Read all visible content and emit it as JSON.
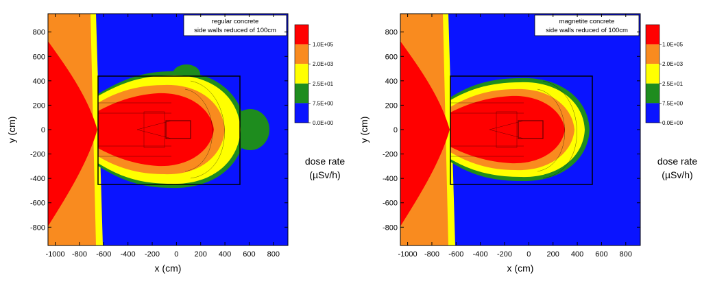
{
  "chart_data": [
    {
      "type": "heatmap",
      "annotation_lines": [
        "regular concrete",
        "side walls reduced of 100cm"
      ],
      "xlabel": "x (cm)",
      "ylabel": "y (cm)",
      "xlim": [
        -1060,
        920
      ],
      "ylim": [
        -950,
        950
      ],
      "xticks": [
        -1000,
        -800,
        -600,
        -400,
        -200,
        0,
        200,
        400,
        600,
        800
      ],
      "yticks": [
        -800,
        -600,
        -400,
        -200,
        0,
        200,
        400,
        600,
        800
      ],
      "colorbar_title": [
        "dose rate",
        "(µSv/h)"
      ],
      "colorbar_levels": [
        "1.0E+05",
        "2.0E+03",
        "2.5E+01",
        "7.5E+00",
        "0.0E+00"
      ],
      "colorbar_colors": [
        "#ff0000",
        "#f98b1f",
        "#ffff00",
        "#1e8c1e",
        "#0a14ff"
      ],
      "shielding_outline_cm": {
        "x": [
          -630,
          520
        ],
        "y": [
          -440,
          440
        ]
      },
      "dose_zones_cm": {
        "outer_yellow": {
          "x": [
            -640,
            560
          ],
          "y": [
            -440,
            440
          ]
        },
        "orange_core": {
          "x": [
            -640,
            420
          ],
          "y": [
            -360,
            370
          ]
        },
        "left_high_dose_x_cm": -640,
        "green_lobe_right_center": [
          580,
          0
        ]
      }
    },
    {
      "type": "heatmap",
      "annotation_lines": [
        "magnetite concrete",
        "side walls reduced of 100cm"
      ],
      "xlabel": "x (cm)",
      "ylabel": "y (cm)",
      "xlim": [
        -1060,
        920
      ],
      "ylim": [
        -950,
        950
      ],
      "xticks": [
        -1000,
        -800,
        -600,
        -400,
        -200,
        0,
        200,
        400,
        600,
        800
      ],
      "yticks": [
        -800,
        -600,
        -400,
        -200,
        0,
        200,
        400,
        600,
        800
      ],
      "colorbar_title": [
        "dose rate",
        "(µSv/h)"
      ],
      "colorbar_levels": [
        "1.0E+05",
        "2.0E+03",
        "2.5E+01",
        "7.5E+00",
        "0.0E+00"
      ],
      "colorbar_colors": [
        "#ff0000",
        "#f98b1f",
        "#ffff00",
        "#1e8c1e",
        "#0a14ff"
      ],
      "shielding_outline_cm": {
        "x": [
          -630,
          520
        ],
        "y": [
          -440,
          440
        ]
      },
      "dose_zones_cm": {
        "outer_yellow": {
          "x": [
            -640,
            480
          ],
          "y": [
            -400,
            380
          ]
        },
        "orange_core": {
          "x": [
            -640,
            400
          ],
          "y": [
            -340,
            340
          ]
        },
        "left_high_dose_x_cm": -640,
        "green_lobe_right_center": null
      }
    }
  ]
}
